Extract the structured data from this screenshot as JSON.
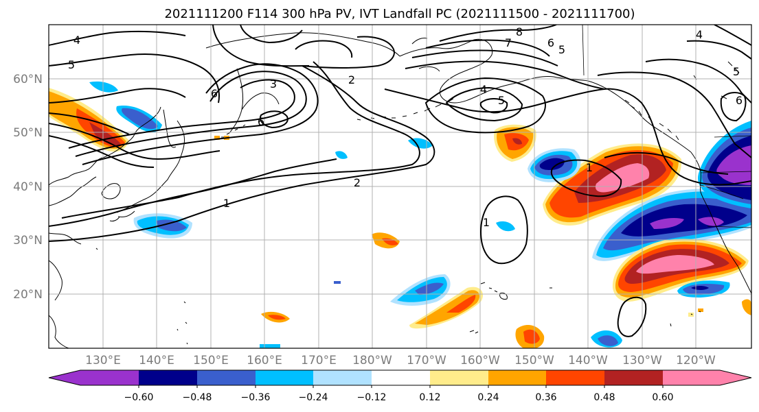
{
  "title": "2021111200 F114 300 hPa PV, IVT Landfall PC (2021111500 - 2021111700)",
  "lon_labels": [
    "130°E",
    "140°E",
    "150°E",
    "160°E",
    "170°E",
    "180°W",
    "170°W",
    "160°W",
    "150°W",
    "140°W",
    "130°W",
    "120°W"
  ],
  "lat_labels": [
    "20°N",
    "30°N",
    "40°N",
    "50°N",
    "60°N"
  ],
  "colorbar": {
    "ticks": [
      "−0.60",
      "−0.48",
      "−0.36",
      "−0.24",
      "−0.12",
      "0.12",
      "0.24",
      "0.36",
      "0.48",
      "0.60"
    ],
    "colors": [
      "#9a32cd",
      "#00008b",
      "#3a5fcd",
      "#00bfff",
      "#b0e2ff",
      "#ffffff",
      "#ffec8b",
      "#ffa500",
      "#ff4500",
      "#b22222",
      "#ff82ab"
    ]
  },
  "pv_contour_labels": [
    "4",
    "5",
    "6",
    "3",
    "2",
    "6",
    "2",
    "1",
    "4",
    "5",
    "8",
    "7",
    "6",
    "5",
    "1",
    "1",
    "6",
    "5",
    "4"
  ]
}
